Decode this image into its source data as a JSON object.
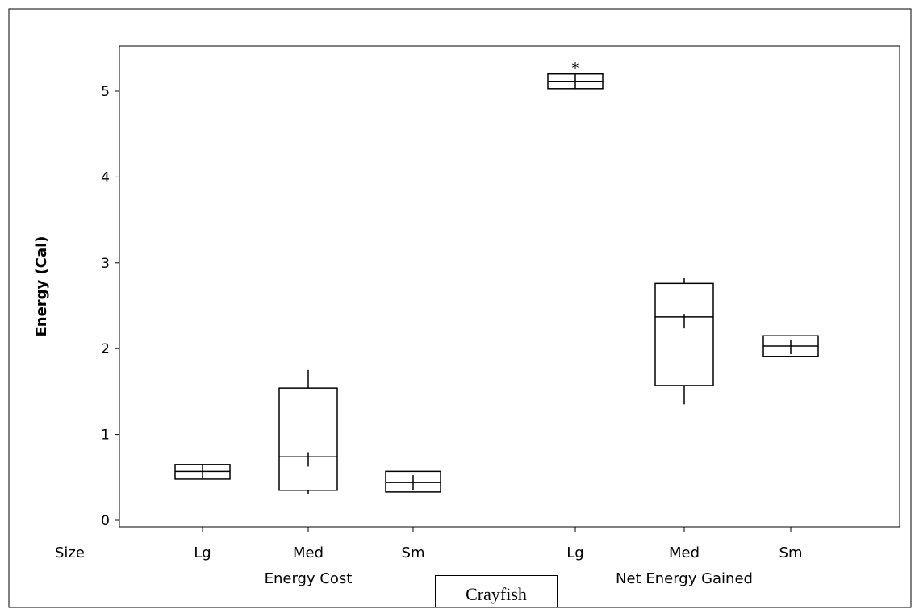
{
  "chart_data": {
    "type": "box",
    "ylabel": "Energy (Cal)",
    "ylim": [
      0,
      5.5
    ],
    "yticks": [
      0,
      1,
      2,
      3,
      4,
      5
    ],
    "factor_label": "Size",
    "groups": [
      {
        "label": "Energy Cost",
        "boxes": [
          {
            "category": "Lg",
            "whisker_low": 0.48,
            "q1": 0.48,
            "median": 0.57,
            "q3": 0.65,
            "whisker_high": 0.65,
            "mean": 0.57,
            "outliers": []
          },
          {
            "category": "Med",
            "whisker_low": 0.3,
            "q1": 0.35,
            "median": 0.74,
            "q3": 1.54,
            "whisker_high": 1.75,
            "mean": 0.71,
            "outliers": []
          },
          {
            "category": "Sm",
            "whisker_low": 0.33,
            "q1": 0.33,
            "median": 0.44,
            "q3": 0.57,
            "whisker_high": 0.57,
            "mean": 0.44,
            "outliers": []
          }
        ]
      },
      {
        "label": "Net Energy Gained",
        "boxes": [
          {
            "category": "Lg",
            "whisker_low": 5.03,
            "q1": 5.03,
            "median": 5.11,
            "q3": 5.2,
            "whisker_high": 5.2,
            "mean": 5.11,
            "outliers": [
              5.31
            ]
          },
          {
            "category": "Med",
            "whisker_low": 1.35,
            "q1": 1.57,
            "median": 2.37,
            "q3": 2.76,
            "whisker_high": 2.82,
            "mean": 2.32,
            "outliers": []
          },
          {
            "category": "Sm",
            "whisker_low": 1.91,
            "q1": 1.91,
            "median": 2.03,
            "q3": 2.15,
            "whisker_high": 2.15,
            "mean": 2.02,
            "outliers": []
          }
        ]
      }
    ]
  },
  "caption": "Crayfish"
}
